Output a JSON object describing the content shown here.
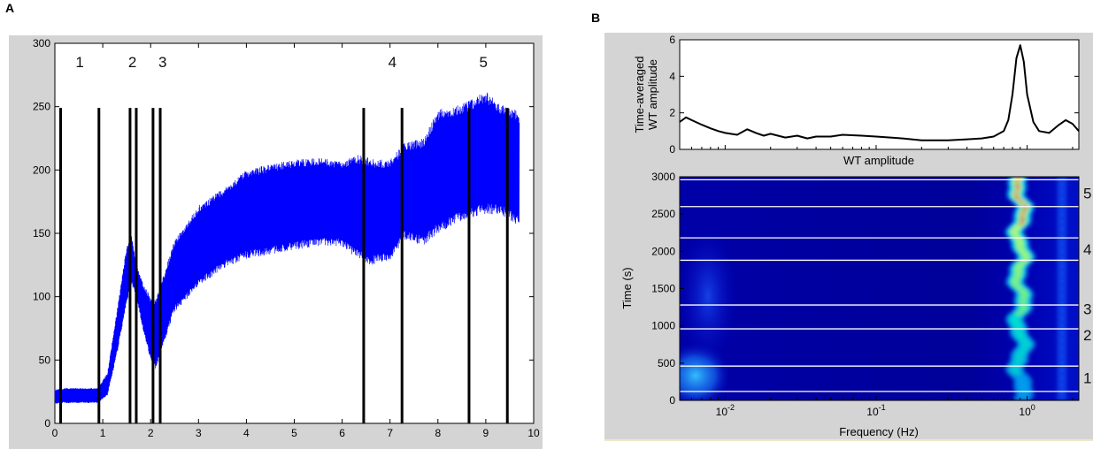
{
  "chart_data": [
    {
      "panel": "A",
      "type": "line",
      "color": "#0000FF",
      "xlim": [
        0,
        10
      ],
      "ylim": [
        0,
        300
      ],
      "xticks": [
        "0",
        "1",
        "2",
        "3",
        "4",
        "5",
        "6",
        "7",
        "8",
        "9",
        "10"
      ],
      "yticks": [
        "0",
        "50",
        "100",
        "150",
        "200",
        "250",
        "300"
      ],
      "envelope_x": [
        0,
        0.2,
        0.6,
        0.9,
        1.1,
        1.3,
        1.5,
        1.6,
        1.7,
        1.85,
        2.0,
        2.1,
        2.2,
        2.5,
        3.0,
        3.5,
        4.0,
        4.5,
        5.0,
        5.5,
        6.0,
        6.3,
        6.6,
        7.0,
        7.3,
        7.7,
        8.0,
        8.5,
        9.0,
        9.3,
        9.6,
        9.7
      ],
      "envelope_upper": [
        27,
        28,
        28,
        28,
        40,
        90,
        140,
        150,
        125,
        110,
        100,
        98,
        110,
        145,
        172,
        185,
        200,
        205,
        208,
        210,
        207,
        212,
        210,
        208,
        222,
        225,
        248,
        252,
        262,
        252,
        248,
        245
      ],
      "envelope_lower": [
        15,
        16,
        16,
        16,
        22,
        55,
        95,
        110,
        100,
        72,
        50,
        42,
        55,
        88,
        108,
        122,
        130,
        133,
        137,
        140,
        140,
        130,
        125,
        128,
        145,
        140,
        150,
        160,
        165,
        165,
        158,
        155
      ],
      "event_lines_x": [
        0.12,
        0.92,
        1.57,
        1.7,
        2.05,
        2.2,
        6.45,
        7.25,
        8.65,
        9.45
      ],
      "event_line_top": 249,
      "event_labels": [
        {
          "text": "1",
          "x": 0.52
        },
        {
          "text": "2",
          "x": 1.62
        },
        {
          "text": "3",
          "x": 2.25
        },
        {
          "text": "4",
          "x": 7.05
        },
        {
          "text": "5",
          "x": 8.95
        }
      ],
      "event_label_y": 281
    },
    {
      "panel": "B-top",
      "type": "line",
      "color": "#000000",
      "xscale": "log",
      "xlim": [
        0.005,
        2.2
      ],
      "ylim": [
        0,
        6
      ],
      "yticks": [
        "0",
        "2",
        "4",
        "6"
      ],
      "ylabel_line1": "Time-averaged",
      "ylabel_line2": "WT amplitude",
      "xlabel": "WT amplitude",
      "x": [
        0.005,
        0.0055,
        0.006,
        0.007,
        0.008,
        0.009,
        0.01,
        0.012,
        0.014,
        0.016,
        0.018,
        0.02,
        0.025,
        0.03,
        0.035,
        0.04,
        0.05,
        0.06,
        0.08,
        0.1,
        0.15,
        0.2,
        0.3,
        0.4,
        0.5,
        0.6,
        0.7,
        0.75,
        0.8,
        0.85,
        0.9,
        0.95,
        1.0,
        1.1,
        1.2,
        1.4,
        1.6,
        1.8,
        2.0,
        2.2
      ],
      "y": [
        1.5,
        1.75,
        1.6,
        1.35,
        1.15,
        1.0,
        0.9,
        0.8,
        1.1,
        0.9,
        0.75,
        0.85,
        0.65,
        0.75,
        0.6,
        0.7,
        0.7,
        0.8,
        0.75,
        0.7,
        0.6,
        0.5,
        0.5,
        0.55,
        0.6,
        0.7,
        1.0,
        1.6,
        3.0,
        5.0,
        5.7,
        4.8,
        3.0,
        1.5,
        1.0,
        0.9,
        1.3,
        1.6,
        1.4,
        1.0
      ]
    },
    {
      "panel": "B-bottom",
      "type": "heatmap",
      "xscale": "log",
      "xlim": [
        0.005,
        2.2
      ],
      "ylim": [
        0,
        3000
      ],
      "xticks": [
        "10^-2",
        "10^-1",
        "10^0"
      ],
      "xtick_values": [
        0.01,
        0.1,
        1
      ],
      "yticks": [
        "0",
        "500",
        "1000",
        "1500",
        "2000",
        "2500",
        "3000"
      ],
      "xlabel": "Frequency (Hz)",
      "ylabel": "Time (s)",
      "ridge_frequency": 0.9,
      "event_lines_time": [
        120,
        460,
        960,
        1280,
        1880,
        2180,
        2600,
        2960
      ],
      "event_labels": [
        {
          "text": "1",
          "t": 300
        },
        {
          "text": "2",
          "t": 880
        },
        {
          "text": "3",
          "t": 1230
        },
        {
          "text": "4",
          "t": 2030
        },
        {
          "text": "5",
          "t": 2780
        }
      ],
      "colormap": [
        "#00008B",
        "#0000FF",
        "#00BFFF",
        "#00FFAA",
        "#FFFF00",
        "#FF8000",
        "#FF0000"
      ]
    }
  ],
  "panel_letters": {
    "a": "A",
    "b": "B"
  }
}
